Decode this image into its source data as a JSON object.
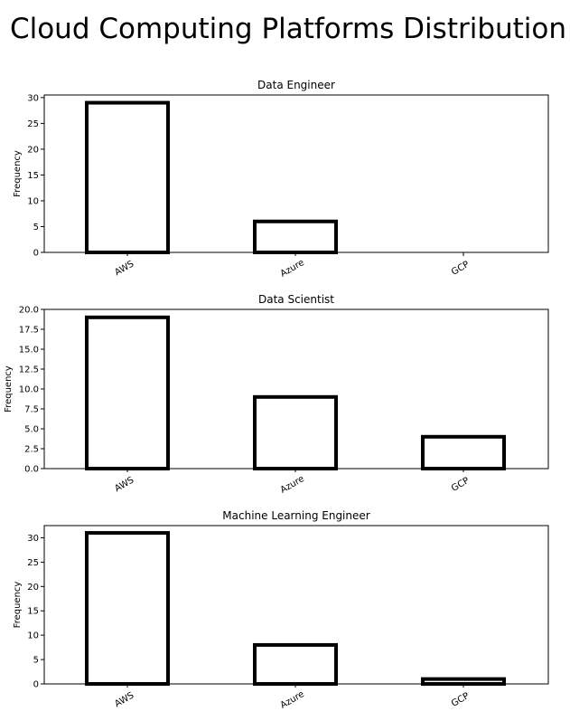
{
  "figure": {
    "suptitle": "Cloud Computing Platforms Distribution"
  },
  "colors": {
    "bar_edge": "#000000",
    "bar_fill": "#ffffff",
    "axes": "#000000",
    "background": "#ffffff"
  },
  "chart_data": [
    {
      "type": "bar",
      "title": "Data Engineer",
      "xlabel": "",
      "ylabel": "Frequency",
      "categories": [
        "AWS",
        "Azure",
        "GCP"
      ],
      "values": [
        29,
        6,
        0
      ],
      "ylim": [
        0,
        30.5
      ],
      "yticks": [
        "0",
        "5",
        "10",
        "15",
        "20",
        "25",
        "30"
      ],
      "ytick_values": [
        0,
        5,
        10,
        15,
        20,
        25,
        30
      ],
      "grid": false,
      "legend": "none"
    },
    {
      "type": "bar",
      "title": "Data Scientist",
      "xlabel": "",
      "ylabel": "Frequency",
      "categories": [
        "AWS",
        "Azure",
        "GCP"
      ],
      "values": [
        19,
        9,
        4
      ],
      "ylim": [
        0,
        20
      ],
      "yticks": [
        "0.0",
        "2.5",
        "5.0",
        "7.5",
        "10.0",
        "12.5",
        "15.0",
        "17.5",
        "20.0"
      ],
      "ytick_values": [
        0,
        2.5,
        5,
        7.5,
        10,
        12.5,
        15,
        17.5,
        20
      ],
      "grid": false,
      "legend": "none"
    },
    {
      "type": "bar",
      "title": "Machine Learning Engineer",
      "xlabel": "",
      "ylabel": "Frequency",
      "categories": [
        "AWS",
        "Azure",
        "GCP"
      ],
      "values": [
        31,
        8,
        1
      ],
      "ylim": [
        0,
        32.5
      ],
      "yticks": [
        "0",
        "5",
        "10",
        "15",
        "20",
        "25",
        "30"
      ],
      "ytick_values": [
        0,
        5,
        10,
        15,
        20,
        25,
        30
      ],
      "grid": false,
      "legend": "none"
    }
  ]
}
